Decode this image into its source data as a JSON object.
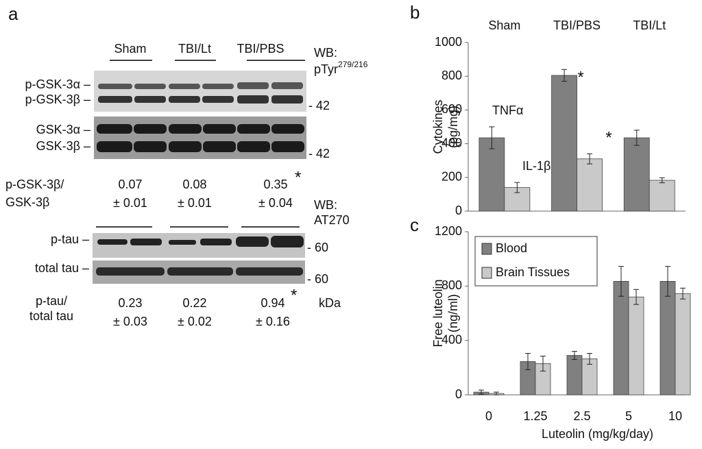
{
  "panel_a": {
    "label": "a",
    "groups": [
      "Sham",
      "TBI/Lt",
      "TBI/PBS"
    ],
    "wb1": [
      "WB:",
      "pTyr",
      "279/216"
    ],
    "blot1_labels": [
      "p-GSK-3α –",
      "p-GSK-3β –"
    ],
    "blot1_marker": "- 42",
    "blot2_labels": [
      "GSK-3α –",
      "GSK-3β –"
    ],
    "blot2_marker": "- 42",
    "ratio1_label": [
      "p-GSK-3β/",
      "GSK-3β"
    ],
    "ratio1": [
      [
        "0.07",
        "± 0.01"
      ],
      [
        "0.08",
        "± 0.01"
      ],
      [
        "0.35",
        "± 0.04"
      ]
    ],
    "ratio1_star": "*",
    "wb2": [
      "WB:",
      "AT270"
    ],
    "blot3_label": "p-tau –",
    "blot3_marker": "- 60",
    "blot4_label": "total tau –",
    "blot4_marker": "- 60",
    "ratio2_label": [
      "p-tau/",
      "total tau"
    ],
    "ratio2": [
      [
        "0.23",
        "± 0.03"
      ],
      [
        "0.22",
        "± 0.02"
      ],
      [
        "0.94",
        "± 0.16"
      ]
    ],
    "ratio2_star": "*",
    "unit": "kDa"
  },
  "chart_data": [
    {
      "type": "bar",
      "panel": "b",
      "categories": [
        "Sham",
        "TBI/PBS",
        "TBI/Lt"
      ],
      "ylabel": [
        "Cytokines",
        "(pg/mg)"
      ],
      "series": [
        {
          "name": "TNFα",
          "color": "#808080",
          "values": [
            435,
            805,
            435
          ],
          "errors": [
            65,
            35,
            45
          ]
        },
        {
          "name": "IL-1β",
          "color": "#c9c9c9",
          "values": [
            140,
            310,
            183
          ],
          "errors": [
            30,
            30,
            15
          ]
        }
      ],
      "annotations": [
        "*",
        "*"
      ],
      "ylim": [
        0,
        1000
      ],
      "yticks": [
        0,
        200,
        400,
        600,
        800,
        1000
      ]
    },
    {
      "type": "bar",
      "panel": "c",
      "categories": [
        "0",
        "1.25",
        "2.5",
        "5",
        "10"
      ],
      "xlabel": "Luteolin (mg/kg/day)",
      "ylabel": [
        "Free luteolin",
        "(ng/ml)"
      ],
      "series": [
        {
          "name": "Blood",
          "color": "#808080",
          "values": [
            20,
            245,
            290,
            835,
            835
          ],
          "errors": [
            15,
            60,
            30,
            110,
            110
          ]
        },
        {
          "name": "Brain Tissues",
          "color": "#c9c9c9",
          "values": [
            10,
            230,
            265,
            720,
            745
          ],
          "errors": [
            10,
            55,
            40,
            55,
            40
          ]
        }
      ],
      "legend": "upper left",
      "ylim": [
        0,
        1200
      ],
      "yticks": [
        0,
        400,
        800,
        1200
      ]
    }
  ]
}
